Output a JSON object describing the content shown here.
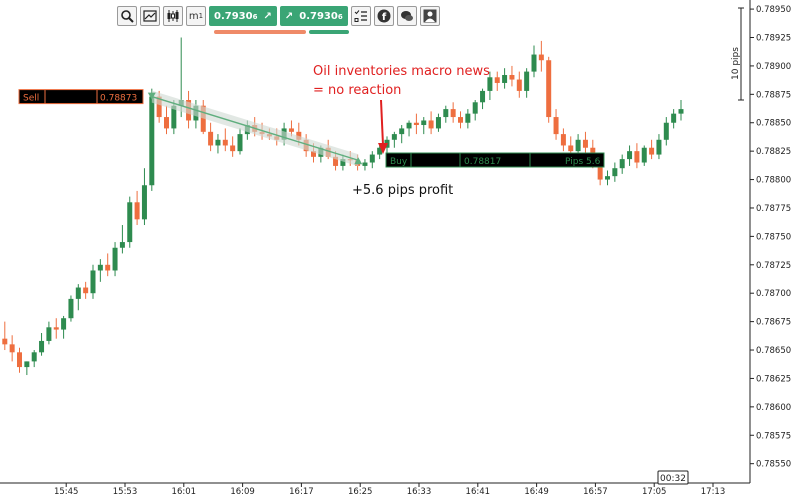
{
  "toolbar": {
    "sell_price": "0.7930",
    "sell_suffix": "6",
    "buy_price": "0.7930",
    "buy_suffix": "6",
    "icons": [
      "zoom-icon",
      "chart-settings-icon",
      "candles-icon",
      "timeframe-icon",
      "orders-list-icon",
      "facebook-icon",
      "chat-icon",
      "trader-icon"
    ],
    "timeframe_label": "m",
    "timeframe_sub": "1"
  },
  "trade": {
    "sell_label": "Sell",
    "sell_price": "0.78873",
    "buy_label": "Buy",
    "buy_price": "0.78817",
    "pips_label": "Pips 5.6"
  },
  "annotations": {
    "news_line1": "Oil inventories macro news",
    "news_line2": "= no reaction",
    "profit": "+5.6 pips profit",
    "scale_label": "10 pips",
    "countdown": "00:32"
  },
  "colors": {
    "up": "#2e8b4f",
    "down": "#ee6e3f",
    "trade_line": "#5fae7e",
    "sell_line": "#ee6e3f",
    "annotation_red": "#e02020"
  },
  "chart_data": {
    "type": "candlestick",
    "ylim": [
      0.78533,
      0.78958
    ],
    "ytick_values": [
      0.7855,
      0.78575,
      0.786,
      0.78625,
      0.7865,
      0.78675,
      0.787,
      0.78725,
      0.7875,
      0.78775,
      0.788,
      0.78825,
      0.7885,
      0.78875,
      0.789,
      0.78925,
      0.7895
    ],
    "ytick_labels": [
      "0.78550",
      "0.78575",
      "0.78600",
      "0.78625",
      "0.78650",
      "0.78675",
      "0.78700",
      "0.78725",
      "0.78750",
      "0.78775",
      "0.78800",
      "0.78825",
      "0.78850",
      "0.78875",
      "0.78900",
      "0.78925",
      "0.78950"
    ],
    "xtick_labels": [
      "15:45",
      "15:53",
      "16:01",
      "16:09",
      "16:17",
      "16:25",
      "16:33",
      "16:41",
      "16:49",
      "16:57",
      "17:05",
      "17:13"
    ],
    "xtick_index": [
      4,
      12,
      20,
      28,
      36,
      44,
      52,
      60,
      68,
      76,
      84,
      92
    ],
    "candles": [
      [
        0.7866,
        0.78675,
        0.7865,
        0.78655
      ],
      [
        0.78655,
        0.78663,
        0.7864,
        0.78648
      ],
      [
        0.78648,
        0.78652,
        0.7863,
        0.78635
      ],
      [
        0.78635,
        0.7864,
        0.78628,
        0.7864
      ],
      [
        0.7864,
        0.7865,
        0.78635,
        0.78648
      ],
      [
        0.78648,
        0.78665,
        0.78645,
        0.78658
      ],
      [
        0.78658,
        0.78675,
        0.78655,
        0.7867
      ],
      [
        0.7867,
        0.78678,
        0.7866,
        0.78668
      ],
      [
        0.78668,
        0.7868,
        0.7866,
        0.78678
      ],
      [
        0.78678,
        0.78698,
        0.78675,
        0.78695
      ],
      [
        0.78695,
        0.78708,
        0.78685,
        0.78705
      ],
      [
        0.78705,
        0.7871,
        0.78695,
        0.787
      ],
      [
        0.787,
        0.78725,
        0.78695,
        0.7872
      ],
      [
        0.7872,
        0.7873,
        0.7871,
        0.78725
      ],
      [
        0.78725,
        0.78735,
        0.78715,
        0.7872
      ],
      [
        0.7872,
        0.78745,
        0.78715,
        0.7874
      ],
      [
        0.7874,
        0.7876,
        0.78735,
        0.78745
      ],
      [
        0.78745,
        0.78785,
        0.7874,
        0.7878
      ],
      [
        0.7878,
        0.7879,
        0.7876,
        0.78765
      ],
      [
        0.78765,
        0.7881,
        0.7876,
        0.78795
      ],
      [
        0.78795,
        0.7888,
        0.7879,
        0.78873
      ],
      [
        0.78873,
        0.78878,
        0.7885,
        0.78855
      ],
      [
        0.78855,
        0.78865,
        0.7884,
        0.78845
      ],
      [
        0.78845,
        0.7887,
        0.7884,
        0.78865
      ],
      [
        0.78865,
        0.78925,
        0.78855,
        0.7887
      ],
      [
        0.7887,
        0.78878,
        0.78845,
        0.78852
      ],
      [
        0.78852,
        0.7887,
        0.78845,
        0.78865
      ],
      [
        0.78865,
        0.7887,
        0.7884,
        0.78842
      ],
      [
        0.78842,
        0.7885,
        0.78825,
        0.7883
      ],
      [
        0.7883,
        0.7884,
        0.78823,
        0.78835
      ],
      [
        0.78835,
        0.78845,
        0.78825,
        0.7883
      ],
      [
        0.7883,
        0.78838,
        0.7882,
        0.78825
      ],
      [
        0.78825,
        0.78845,
        0.78822,
        0.7884
      ],
      [
        0.7884,
        0.78852,
        0.78835,
        0.78848
      ],
      [
        0.78848,
        0.78855,
        0.78838,
        0.78842
      ],
      [
        0.78842,
        0.7885,
        0.78835,
        0.7884
      ],
      [
        0.7884,
        0.78845,
        0.78835,
        0.78838
      ],
      [
        0.78838,
        0.78845,
        0.7883,
        0.78835
      ],
      [
        0.78835,
        0.7885,
        0.7883,
        0.78845
      ],
      [
        0.78845,
        0.78852,
        0.78838,
        0.78842
      ],
      [
        0.78842,
        0.7885,
        0.7883,
        0.78835
      ],
      [
        0.78835,
        0.7884,
        0.7882,
        0.78825
      ],
      [
        0.78825,
        0.78832,
        0.78815,
        0.7882
      ],
      [
        0.7882,
        0.7883,
        0.78815,
        0.78828
      ],
      [
        0.78828,
        0.78835,
        0.78818,
        0.7882
      ],
      [
        0.7882,
        0.78825,
        0.78808,
        0.78812
      ],
      [
        0.78812,
        0.78822,
        0.78808,
        0.78818
      ],
      [
        0.78818,
        0.78825,
        0.78812,
        0.78817
      ],
      [
        0.78817,
        0.78822,
        0.78808,
        0.78812
      ],
      [
        0.78812,
        0.78818,
        0.78808,
        0.78815
      ],
      [
        0.78815,
        0.78825,
        0.7881,
        0.78822
      ],
      [
        0.78822,
        0.78832,
        0.78818,
        0.78828
      ],
      [
        0.78828,
        0.78838,
        0.78822,
        0.78835
      ],
      [
        0.78835,
        0.78842,
        0.78828,
        0.7884
      ],
      [
        0.7884,
        0.78848,
        0.78832,
        0.78845
      ],
      [
        0.78845,
        0.78852,
        0.78838,
        0.7885
      ],
      [
        0.7885,
        0.78858,
        0.7884,
        0.78848
      ],
      [
        0.78848,
        0.78855,
        0.7884,
        0.78852
      ],
      [
        0.78852,
        0.7886,
        0.7884,
        0.78845
      ],
      [
        0.78845,
        0.78858,
        0.78842,
        0.78855
      ],
      [
        0.78855,
        0.78865,
        0.7885,
        0.78862
      ],
      [
        0.78862,
        0.78868,
        0.7885,
        0.78855
      ],
      [
        0.78855,
        0.7886,
        0.78845,
        0.7885
      ],
      [
        0.7885,
        0.78862,
        0.78845,
        0.78858
      ],
      [
        0.78858,
        0.7887,
        0.78852,
        0.78868
      ],
      [
        0.78868,
        0.7888,
        0.78862,
        0.78878
      ],
      [
        0.78878,
        0.78895,
        0.7887,
        0.7889
      ],
      [
        0.7889,
        0.78895,
        0.78878,
        0.78885
      ],
      [
        0.78885,
        0.78898,
        0.7888,
        0.78892
      ],
      [
        0.78892,
        0.789,
        0.78882,
        0.78888
      ],
      [
        0.78888,
        0.78895,
        0.78872,
        0.78878
      ],
      [
        0.78878,
        0.78898,
        0.78872,
        0.78895
      ],
      [
        0.78895,
        0.78918,
        0.7889,
        0.7891
      ],
      [
        0.7891,
        0.78922,
        0.78895,
        0.78905
      ],
      [
        0.78905,
        0.78908,
        0.7885,
        0.78855
      ],
      [
        0.78855,
        0.78862,
        0.78835,
        0.7884
      ],
      [
        0.7884,
        0.78845,
        0.78825,
        0.7883
      ],
      [
        0.7883,
        0.78838,
        0.7882,
        0.78825
      ],
      [
        0.78825,
        0.7884,
        0.7882,
        0.78835
      ],
      [
        0.78835,
        0.78842,
        0.78822,
        0.78828
      ],
      [
        0.78828,
        0.78835,
        0.7881,
        0.78815
      ],
      [
        0.78815,
        0.7882,
        0.78795,
        0.788
      ],
      [
        0.788,
        0.78808,
        0.78795,
        0.78803
      ],
      [
        0.78803,
        0.78815,
        0.78798,
        0.7881
      ],
      [
        0.7881,
        0.78822,
        0.78805,
        0.78818
      ],
      [
        0.78818,
        0.7883,
        0.78812,
        0.78825
      ],
      [
        0.78825,
        0.78832,
        0.7881,
        0.78815
      ],
      [
        0.78815,
        0.7883,
        0.78812,
        0.78828
      ],
      [
        0.78828,
        0.78835,
        0.78818,
        0.78822
      ],
      [
        0.78822,
        0.7884,
        0.78818,
        0.78835
      ],
      [
        0.78835,
        0.78855,
        0.7883,
        0.7885
      ],
      [
        0.7885,
        0.78862,
        0.78845,
        0.78858
      ],
      [
        0.78858,
        0.7887,
        0.78852,
        0.78862
      ]
    ],
    "sell_entry": {
      "index": 20,
      "price": 0.78873
    },
    "buy_exit": {
      "index": 47,
      "price": 0.78817
    },
    "grid": false
  }
}
